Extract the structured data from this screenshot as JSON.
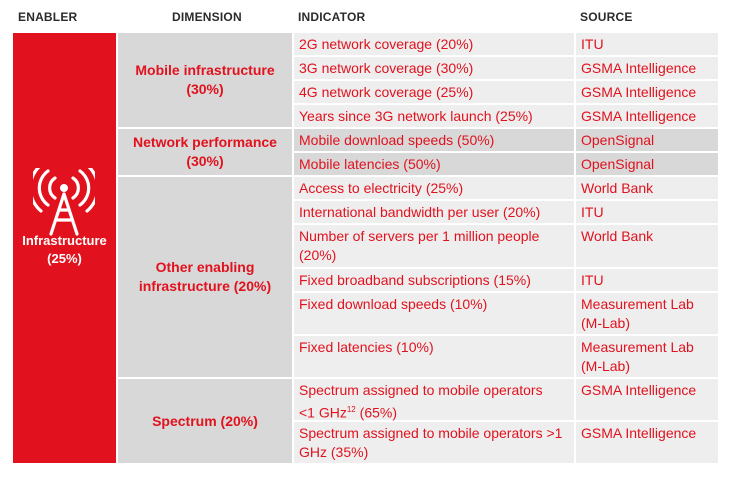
{
  "headers": {
    "enabler": "ENABLER",
    "dimension": "DIMENSION",
    "indicator": "INDICATOR",
    "source": "SOURCE"
  },
  "enabler": {
    "label": "Infrastructure (25%)",
    "icon": "cell-tower-icon"
  },
  "colors": {
    "accent": "#e1121e",
    "light_row": "#eeeeee",
    "dark_row": "#d8d8d8"
  },
  "dimensions": [
    {
      "label": "Mobile infrastructure (30%)"
    },
    {
      "label": "Network performance (30%)"
    },
    {
      "label": "Other enabling infrastructure (20%)"
    },
    {
      "label": "Spectrum (20%)"
    }
  ],
  "rows": [
    {
      "indicator": "2G network coverage (20%)",
      "source": "ITU"
    },
    {
      "indicator": "3G network coverage (30%)",
      "source": "GSMA Intelligence"
    },
    {
      "indicator": "4G network coverage (25%)",
      "source": "GSMA Intelligence"
    },
    {
      "indicator": "Years since 3G network launch (25%)",
      "source": "GSMA Intelligence"
    },
    {
      "indicator": "Mobile download speeds (50%)",
      "source": "OpenSignal"
    },
    {
      "indicator": "Mobile latencies (50%)",
      "source": "OpenSignal"
    },
    {
      "indicator": "Access to electricity (25%)",
      "source": "World Bank"
    },
    {
      "indicator": "International bandwidth per user (20%)",
      "source": "ITU"
    },
    {
      "indicator": "Number of servers per 1 million people (20%)",
      "source": "World Bank"
    },
    {
      "indicator": "Fixed broadband subscriptions (15%)",
      "source": "ITU"
    },
    {
      "indicator": "Fixed download speeds (10%)",
      "source": "Measurement Lab (M-Lab)"
    },
    {
      "indicator": "Fixed latencies (10%)",
      "source": "Measurement Lab (M-Lab)"
    },
    {
      "indicator": "Spectrum assigned to mobile operators",
      "indicator_sup": "12",
      "indicator_lead": "<1 GHz",
      "indicator_tail": " (65%)",
      "source": "GSMA Intelligence"
    },
    {
      "indicator": "Spectrum assigned to mobile operators >1 GHz (35%)",
      "source": "GSMA Intelligence"
    }
  ]
}
